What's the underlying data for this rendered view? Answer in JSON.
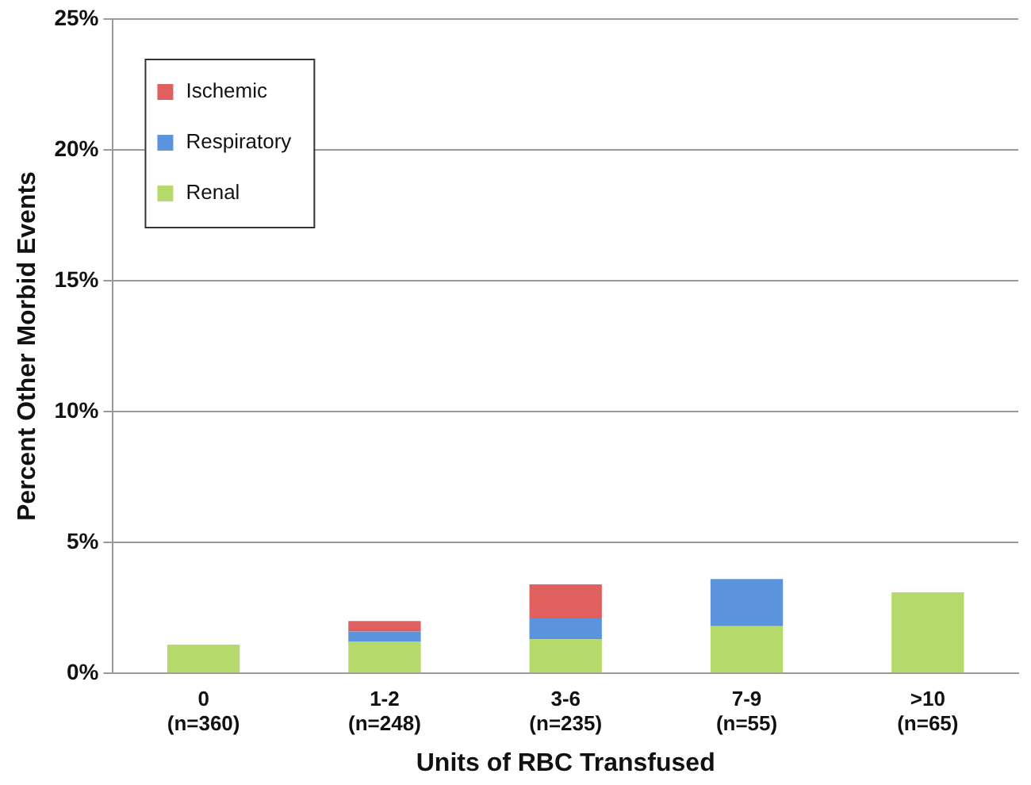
{
  "chart_data": {
    "type": "bar",
    "stacked": true,
    "xlabel": "Units of RBC Transfused",
    "ylabel": "Percent Other Morbid Events",
    "categories": [
      "0\n(n=360)",
      "1-2\n(n=248)",
      "3-6\n(n=235)",
      "7-9\n(n=55)",
      ">10\n(n=65)"
    ],
    "series": [
      {
        "name": "Renal",
        "color": "#b5d96a",
        "values": [
          1.1,
          1.2,
          1.3,
          1.8,
          3.1
        ]
      },
      {
        "name": "Respiratory",
        "color": "#5b93dd",
        "values": [
          null,
          0.4,
          0.8,
          1.8,
          null
        ]
      },
      {
        "name": "Ischemic",
        "color": "#e06060",
        "values": [
          null,
          0.4,
          1.3,
          null,
          null
        ]
      }
    ],
    "ylim": [
      0,
      25
    ],
    "yticks": [
      {
        "value": 0,
        "label": "0%"
      },
      {
        "value": 5,
        "label": "5%"
      },
      {
        "value": 10,
        "label": "10%"
      },
      {
        "value": 15,
        "label": "15%"
      },
      {
        "value": 20,
        "label": "20%"
      },
      {
        "value": 25,
        "label": "25%"
      }
    ],
    "grid": "y",
    "legend": "top left"
  }
}
